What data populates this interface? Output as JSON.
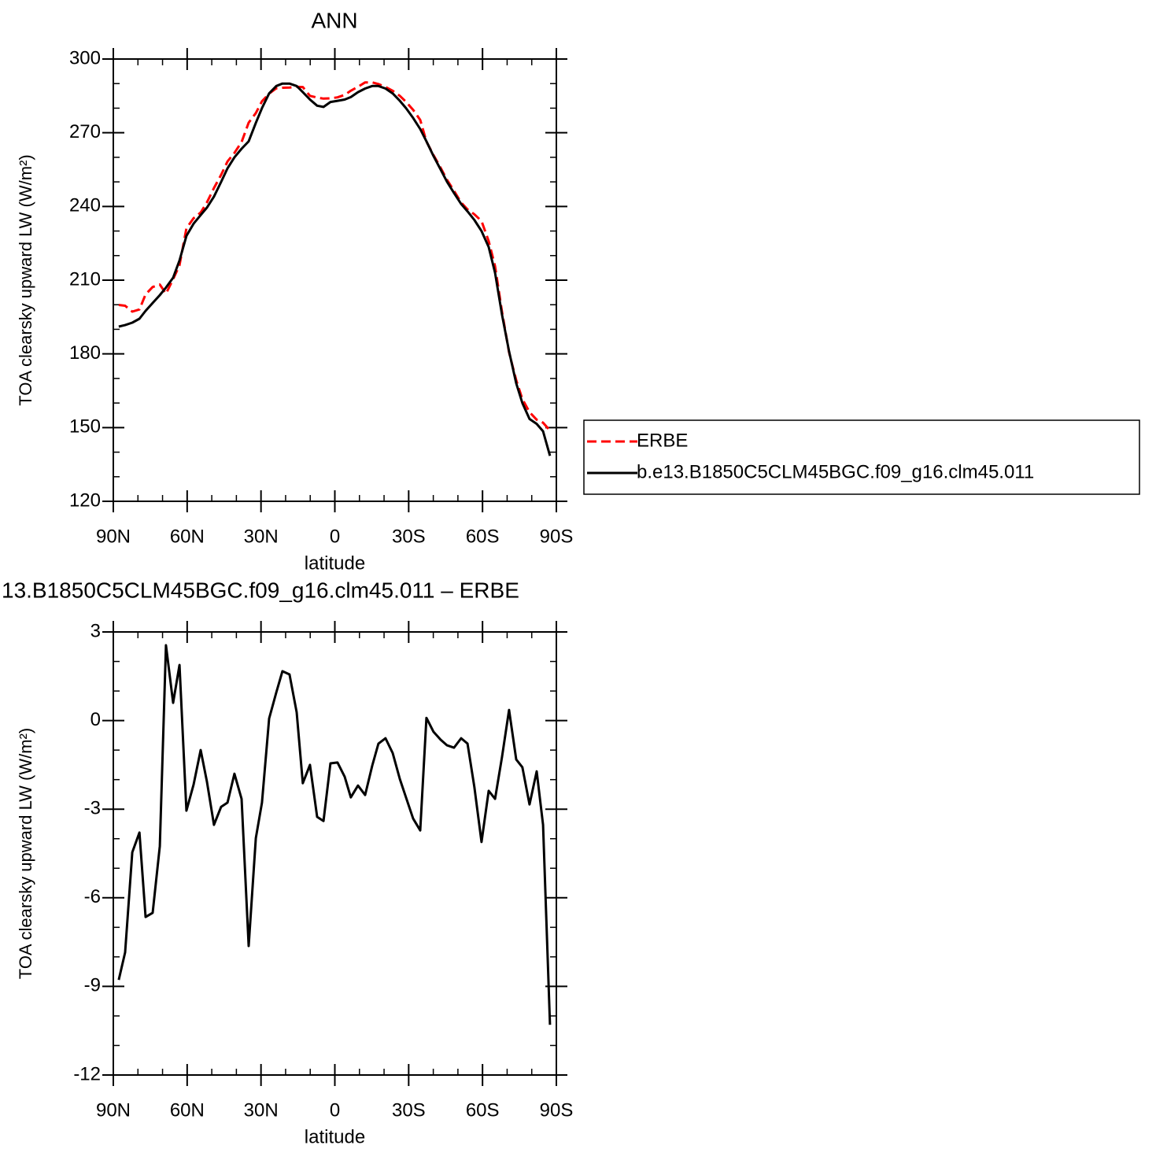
{
  "chart_data": [
    {
      "type": "line",
      "title": "ANN",
      "xlabel": "latitude",
      "ylabel": "TOA clearsky upward LW (W/m²)",
      "x": [
        87.8,
        85.2,
        82.3,
        79.4,
        76.9,
        74.0,
        71.1,
        68.6,
        65.7,
        63.1,
        60.3,
        57.4,
        54.5,
        52.0,
        49.1,
        46.2,
        43.6,
        40.8,
        37.9,
        35.0,
        32.1,
        29.6,
        26.7,
        23.8,
        21.3,
        18.4,
        15.5,
        13.0,
        10.1,
        7.2,
        4.6,
        1.8,
        -1.1,
        -4.0,
        -6.5,
        -9.4,
        -12.3,
        -15.2,
        -17.7,
        -20.6,
        -23.5,
        -26.4,
        -28.9,
        -31.8,
        -34.7,
        -37.2,
        -40.1,
        -43.0,
        -45.6,
        -48.4,
        -51.3,
        -53.9,
        -56.7,
        -59.6,
        -62.5,
        -65.1,
        -67.9,
        -70.8,
        -73.7,
        -76.2,
        -79.1,
        -82.0,
        -84.6,
        -87.4
      ],
      "series": [
        {
          "name": "ERBE",
          "color": "#ff0000",
          "dash": true,
          "values": [
            199.9,
            199.6,
            197.2,
            198.1,
            204.2,
            207.2,
            208.2,
            204.5,
            210.4,
            216.1,
            231.1,
            235.2,
            237.5,
            241.6,
            247.5,
            252.9,
            258.3,
            261.8,
            266.2,
            274.1,
            278.0,
            282.8,
            285.9,
            288.1,
            288.3,
            288.4,
            288.7,
            288.6,
            285.0,
            284.3,
            283.9,
            284.0,
            284.4,
            285.4,
            287.1,
            288.7,
            290.5,
            290.5,
            289.8,
            288.6,
            287.1,
            285.0,
            282.6,
            279.3,
            275.2,
            266.4,
            260.9,
            255.7,
            250.8,
            246.4,
            241.6,
            238.8,
            236.8,
            234.1,
            225.9,
            215.7,
            197.2,
            180.6,
            169.3,
            161.6,
            156.3,
            153.2,
            152.0,
            148.8
          ]
        },
        {
          "name": "b.e13.B1850C5CLM45BGC.f09_g16.clm45.011",
          "color": "#000000",
          "dash": false,
          "values": [
            191.1,
            191.7,
            192.7,
            194.3,
            197.5,
            200.7,
            203.9,
            207.0,
            211.0,
            218.0,
            228.0,
            233.0,
            236.5,
            239.5,
            244.0,
            250.0,
            255.5,
            260.0,
            263.5,
            266.5,
            274.0,
            280.0,
            286.0,
            289.0,
            290.0,
            290.0,
            289.0,
            286.5,
            283.5,
            281.0,
            280.5,
            282.5,
            283.0,
            283.5,
            284.5,
            286.5,
            288.0,
            289.0,
            289.0,
            288.0,
            286.0,
            283.0,
            280.0,
            276.0,
            271.5,
            266.5,
            260.5,
            255.0,
            250.0,
            245.5,
            241.0,
            238.0,
            234.5,
            230.0,
            223.5,
            213.0,
            196.0,
            181.0,
            168.0,
            160.0,
            153.5,
            151.5,
            148.5,
            138.5
          ]
        }
      ],
      "xlim": [
        90,
        -90
      ],
      "xticks": [
        {
          "value": 90,
          "label": "90N"
        },
        {
          "value": 60,
          "label": "60N"
        },
        {
          "value": 30,
          "label": "30N"
        },
        0,
        {
          "value": -30,
          "label": "30S"
        },
        {
          "value": -60,
          "label": "60S"
        },
        {
          "value": -90,
          "label": "90S"
        }
      ],
      "ylim": [
        120,
        300
      ],
      "yticks": [
        120,
        150,
        180,
        210,
        240,
        270,
        300
      ],
      "legend": "right"
    },
    {
      "type": "line",
      "title": "13.B1850C5CLM45BGC.f09_g16.clm45.011 – ERBE",
      "xlabel": "latitude",
      "ylabel": "TOA clearsky upward LW (W/m²)",
      "x": [
        87.8,
        85.2,
        82.3,
        79.4,
        76.9,
        74.0,
        71.1,
        68.6,
        65.7,
        63.1,
        60.3,
        57.4,
        54.5,
        52.0,
        49.1,
        46.2,
        43.6,
        40.8,
        37.9,
        35.0,
        32.1,
        29.6,
        26.7,
        23.8,
        21.3,
        18.4,
        15.5,
        13.0,
        10.1,
        7.2,
        4.6,
        1.8,
        -1.1,
        -4.0,
        -6.5,
        -9.4,
        -12.3,
        -15.2,
        -17.7,
        -20.6,
        -23.5,
        -26.4,
        -28.9,
        -31.8,
        -34.7,
        -37.2,
        -40.1,
        -43.0,
        -45.6,
        -48.4,
        -51.3,
        -53.9,
        -56.7,
        -59.6,
        -62.5,
        -65.1,
        -67.9,
        -70.8,
        -73.7,
        -76.2,
        -79.1,
        -82.0,
        -84.6,
        -87.4
      ],
      "values": [
        -8.78,
        -7.85,
        -4.46,
        -3.79,
        -6.65,
        -6.51,
        -4.25,
        2.55,
        0.6,
        1.88,
        -3.05,
        -2.17,
        -1.0,
        -2.06,
        -3.53,
        -2.92,
        -2.78,
        -1.8,
        -2.65,
        -7.63,
        -3.98,
        -2.78,
        0.07,
        0.95,
        1.67,
        1.56,
        0.28,
        -2.12,
        -1.5,
        -3.26,
        -3.4,
        -1.45,
        -1.42,
        -1.9,
        -2.6,
        -2.2,
        -2.52,
        -1.53,
        -0.78,
        -0.6,
        -1.1,
        -1.98,
        -2.6,
        -3.32,
        -3.72,
        0.09,
        -0.38,
        -0.65,
        -0.84,
        -0.92,
        -0.6,
        -0.78,
        -2.25,
        -4.11,
        -2.38,
        -2.65,
        -1.24,
        0.36,
        -1.32,
        -1.58,
        -2.84,
        -1.72,
        -3.53,
        -10.3
      ],
      "color": "#000000",
      "xlim": [
        90,
        -90
      ],
      "xticks": [
        {
          "value": 90,
          "label": "90N"
        },
        {
          "value": 60,
          "label": "60N"
        },
        {
          "value": 30,
          "label": "30N"
        },
        0,
        {
          "value": -30,
          "label": "30S"
        },
        {
          "value": -60,
          "label": "60S"
        },
        {
          "value": -90,
          "label": "90S"
        }
      ],
      "ylim": [
        -12,
        3
      ],
      "yticks": [
        -12,
        -9,
        -6,
        -3,
        0,
        3
      ]
    }
  ]
}
